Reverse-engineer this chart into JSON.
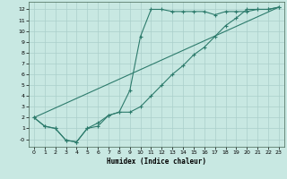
{
  "xlabel": "Humidex (Indice chaleur)",
  "xlim": [
    -0.5,
    23.5
  ],
  "ylim": [
    -0.7,
    12.7
  ],
  "xticks": [
    0,
    1,
    2,
    3,
    4,
    5,
    6,
    7,
    8,
    9,
    10,
    11,
    12,
    13,
    14,
    15,
    16,
    17,
    18,
    19,
    20,
    21,
    22,
    23
  ],
  "yticks": [
    0,
    1,
    2,
    3,
    4,
    5,
    6,
    7,
    8,
    9,
    10,
    11,
    12
  ],
  "ytick_labels": [
    "-0",
    "1",
    "2",
    "3",
    "4",
    "5",
    "6",
    "7",
    "8",
    "9",
    "10",
    "11",
    "12"
  ],
  "line_color": "#2D7B6C",
  "bg_color": "#C8E8E2",
  "grid_color": "#AACFCA",
  "line1_x": [
    0,
    1,
    2,
    3,
    4,
    5,
    6,
    7,
    8,
    9,
    10,
    11,
    12,
    13,
    14,
    15,
    16,
    17,
    18,
    19,
    20,
    21,
    22,
    23
  ],
  "line1_y": [
    2.0,
    1.2,
    1.0,
    -0.1,
    -0.25,
    1.0,
    1.2,
    2.2,
    2.5,
    4.5,
    9.5,
    12.0,
    12.0,
    11.8,
    11.8,
    11.8,
    11.8,
    11.5,
    11.8,
    11.8,
    11.8,
    12.0,
    12.0,
    12.2
  ],
  "line2_x": [
    0,
    1,
    2,
    3,
    4,
    5,
    6,
    7,
    8,
    9,
    10,
    11,
    12,
    13,
    14,
    15,
    16,
    17,
    18,
    19,
    20,
    21,
    22,
    23
  ],
  "line2_y": [
    2.0,
    1.2,
    1.0,
    -0.1,
    -0.25,
    1.0,
    1.5,
    2.2,
    2.5,
    2.5,
    3.0,
    4.0,
    5.0,
    6.0,
    6.8,
    7.8,
    8.5,
    9.5,
    10.5,
    11.2,
    12.0,
    12.0,
    12.0,
    12.2
  ],
  "line3_x": [
    0,
    23
  ],
  "line3_y": [
    2.0,
    12.2
  ]
}
